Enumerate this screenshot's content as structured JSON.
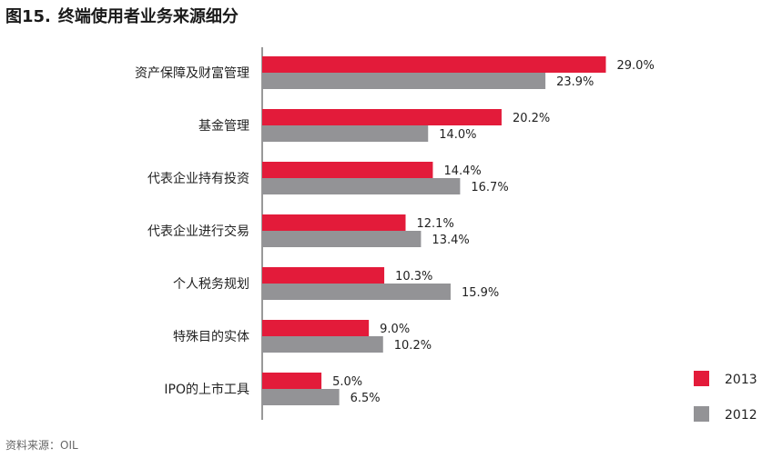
{
  "figure": {
    "number": "图15.",
    "title": "终端使用者业务来源细分",
    "source": "资料来源：OIL"
  },
  "colors": {
    "2013": "#e31b3a",
    "2012": "#939396",
    "axis": "#333333"
  },
  "chart_data": {
    "type": "bar",
    "orientation": "horizontal",
    "categories": [
      "资产保障及财富管理",
      "基金管理",
      "代表企业持有投资",
      "代表企业进行交易",
      "个人税务规划",
      "特殊目的实体",
      "IPO的上市工具"
    ],
    "series": [
      {
        "name": "2013",
        "values": [
          29.0,
          20.2,
          14.4,
          12.1,
          10.3,
          9.0,
          5.0
        ],
        "labels": [
          "29.0%",
          "20.2%",
          "14.4%",
          "12.1%",
          "10.3%",
          "9.0%",
          "5.0%"
        ]
      },
      {
        "name": "2012",
        "values": [
          23.9,
          14.0,
          16.7,
          13.4,
          15.9,
          10.2,
          6.5
        ],
        "labels": [
          "23.9%",
          "14.0%",
          "16.7%",
          "13.4%",
          "15.9%",
          "10.2%",
          "6.5%"
        ]
      }
    ],
    "legend_position": "bottom-right",
    "grid": false
  }
}
